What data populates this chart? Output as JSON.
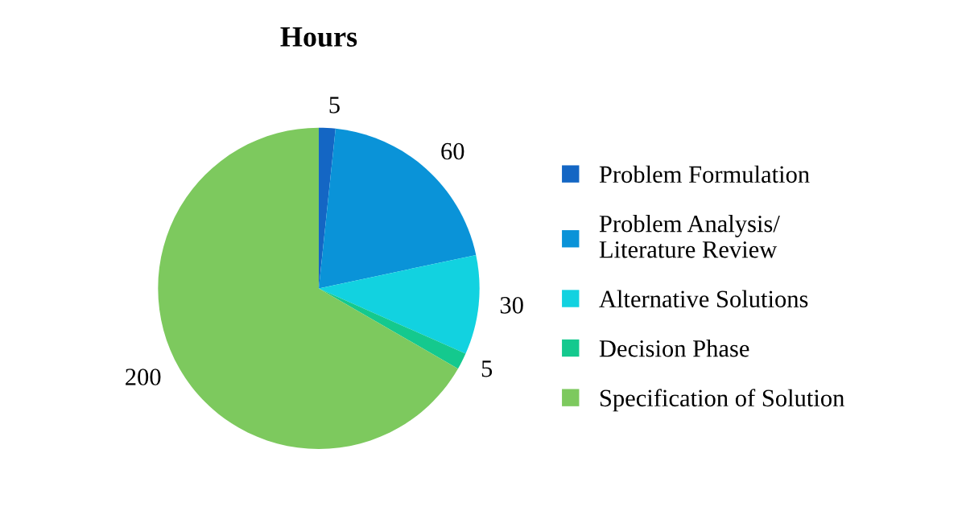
{
  "chart_data": {
    "type": "pie",
    "title": "Hours",
    "categories": [
      "Problem Formulation",
      "Problem Analysis/\nLiterature Review",
      "Alternative Solutions",
      "Decision Phase",
      "Specification of Solution"
    ],
    "values": [
      5,
      60,
      30,
      5,
      200
    ],
    "colors": [
      "#1466c4",
      "#0a93d8",
      "#12d2e0",
      "#14c98e",
      "#7dc95e"
    ],
    "data_labels": true,
    "legend": "right"
  }
}
